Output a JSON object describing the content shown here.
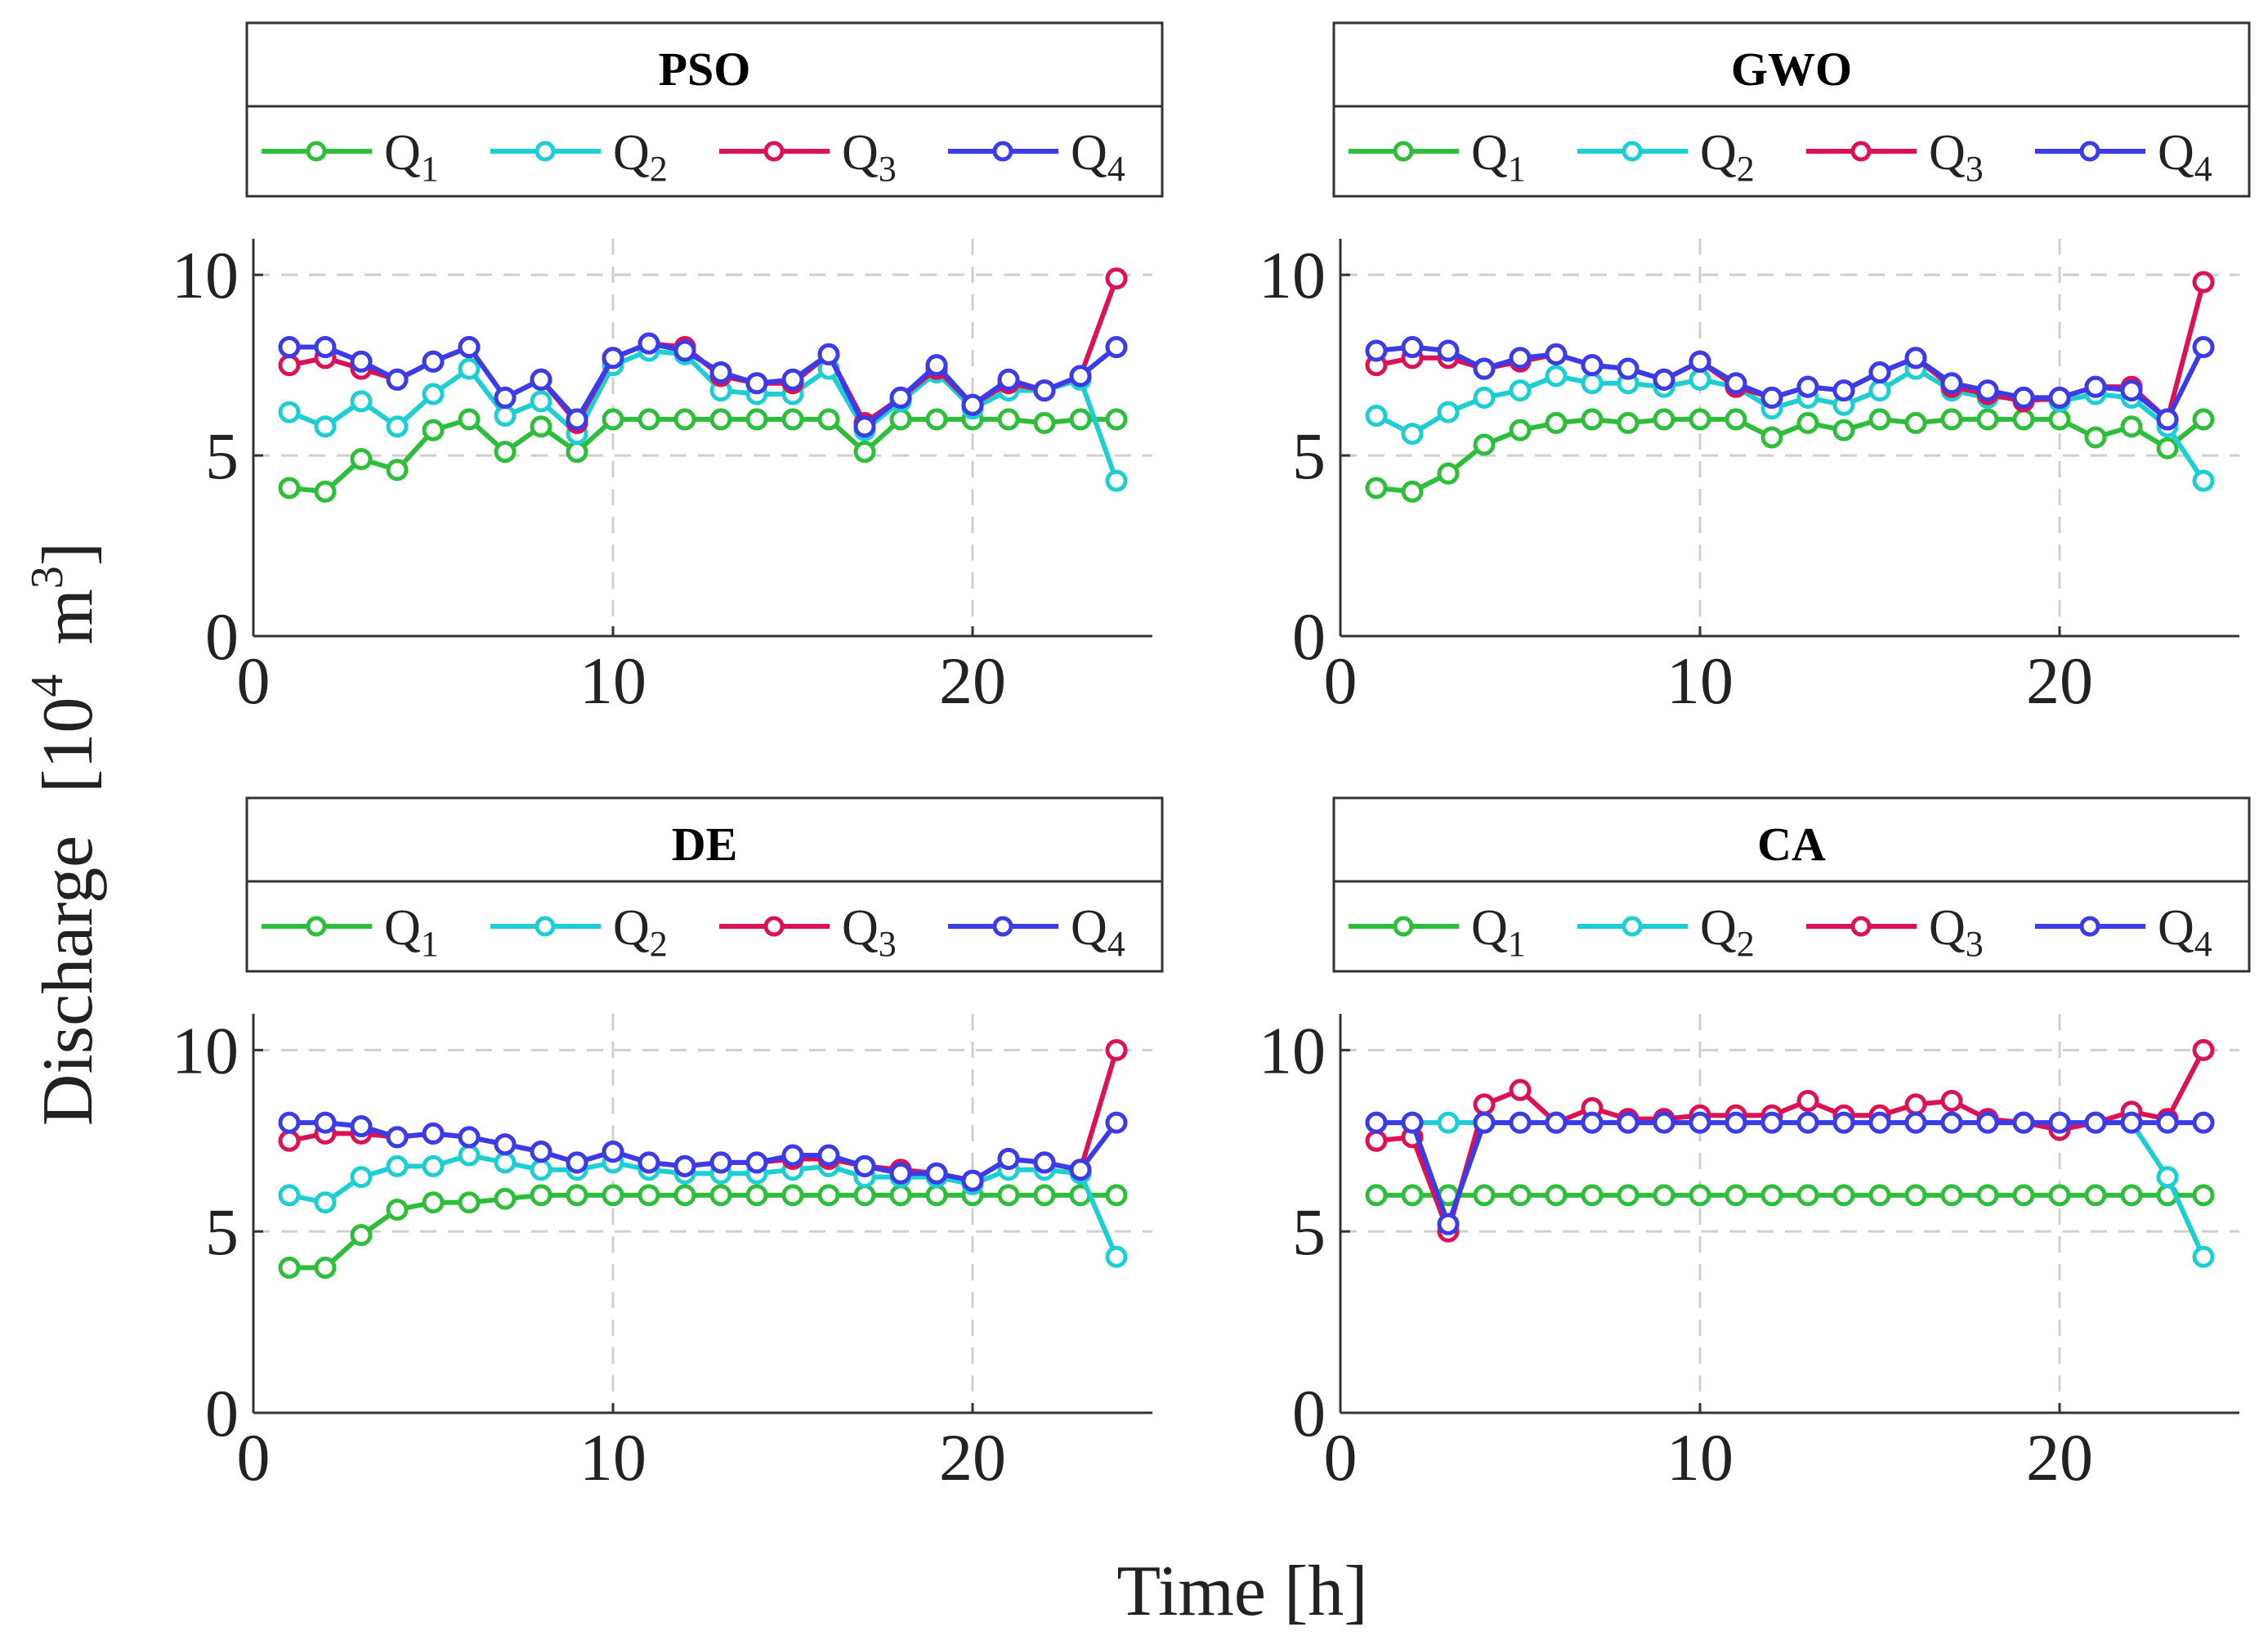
{
  "figure": {
    "xlabel": "Time [h]",
    "ylabel": "Discharge",
    "ylabel_unit_base": "10",
    "ylabel_unit_exp": "4",
    "ylabel_unit_m": "m",
    "ylabel_unit_m_exp": "3",
    "series_colors": [
      "#2fbe3b",
      "#1dcfd3",
      "#dc1257",
      "#3b3be8"
    ]
  },
  "chart_data": [
    {
      "type": "line",
      "title": "PSO",
      "xlim": [
        0,
        25
      ],
      "ylim": [
        0,
        11
      ],
      "xticks": [
        0,
        10,
        20
      ],
      "yticks": [
        0,
        5,
        10
      ],
      "grid": true,
      "x": [
        1,
        2,
        3,
        4,
        5,
        6,
        7,
        8,
        9,
        10,
        11,
        12,
        13,
        14,
        15,
        16,
        17,
        18,
        19,
        20,
        21,
        22,
        23,
        24
      ],
      "series": [
        {
          "name": "Q",
          "sub": "1",
          "values": [
            4.1,
            4.0,
            4.9,
            4.6,
            5.7,
            6.0,
            5.1,
            5.8,
            5.1,
            6.0,
            6.0,
            6.0,
            6.0,
            6.0,
            6.0,
            6.0,
            5.1,
            6.0,
            6.0,
            6.0,
            6.0,
            5.9,
            6.0,
            6.0
          ]
        },
        {
          "name": "Q",
          "sub": "2",
          "values": [
            6.2,
            5.8,
            6.5,
            5.8,
            6.7,
            7.4,
            6.1,
            6.5,
            5.6,
            7.5,
            7.9,
            7.8,
            6.8,
            6.7,
            6.7,
            7.4,
            5.7,
            6.5,
            7.3,
            6.3,
            6.8,
            6.8,
            7.1,
            4.3
          ]
        },
        {
          "name": "Q",
          "sub": "3",
          "values": [
            7.5,
            7.7,
            7.4,
            7.1,
            7.6,
            8.0,
            6.6,
            7.1,
            5.9,
            7.7,
            8.1,
            8.0,
            7.2,
            7.0,
            7.0,
            7.8,
            5.9,
            6.6,
            7.4,
            6.4,
            7.0,
            6.8,
            7.2,
            9.9
          ]
        },
        {
          "name": "Q",
          "sub": "4",
          "values": [
            8.0,
            8.0,
            7.6,
            7.1,
            7.6,
            8.0,
            6.6,
            7.1,
            6.0,
            7.7,
            8.1,
            7.9,
            7.3,
            7.0,
            7.1,
            7.8,
            5.8,
            6.6,
            7.5,
            6.4,
            7.1,
            6.8,
            7.2,
            8.0
          ]
        }
      ]
    },
    {
      "type": "line",
      "title": "GWO",
      "xlim": [
        0,
        25
      ],
      "ylim": [
        0,
        11
      ],
      "xticks": [
        0,
        10,
        20
      ],
      "yticks": [
        0,
        5,
        10
      ],
      "grid": true,
      "x": [
        1,
        2,
        3,
        4,
        5,
        6,
        7,
        8,
        9,
        10,
        11,
        12,
        13,
        14,
        15,
        16,
        17,
        18,
        19,
        20,
        21,
        22,
        23,
        24
      ],
      "series": [
        {
          "name": "Q",
          "sub": "1",
          "values": [
            4.1,
            4.0,
            4.5,
            5.3,
            5.7,
            5.9,
            6.0,
            5.9,
            6.0,
            6.0,
            6.0,
            5.5,
            5.9,
            5.7,
            6.0,
            5.9,
            6.0,
            6.0,
            6.0,
            6.0,
            5.5,
            5.8,
            5.2,
            6.0
          ]
        },
        {
          "name": "Q",
          "sub": "2",
          "values": [
            6.1,
            5.6,
            6.2,
            6.6,
            6.8,
            7.2,
            7.0,
            7.0,
            6.9,
            7.1,
            6.9,
            6.3,
            6.6,
            6.4,
            6.8,
            7.4,
            6.8,
            6.6,
            6.6,
            6.5,
            6.7,
            6.6,
            5.8,
            4.3
          ]
        },
        {
          "name": "Q",
          "sub": "3",
          "values": [
            7.5,
            7.7,
            7.7,
            7.4,
            7.6,
            7.8,
            7.5,
            7.4,
            7.1,
            7.6,
            6.9,
            6.6,
            6.9,
            6.8,
            7.3,
            7.7,
            6.9,
            6.7,
            6.5,
            6.6,
            6.9,
            6.9,
            6.0,
            9.8
          ]
        },
        {
          "name": "Q",
          "sub": "4",
          "values": [
            7.9,
            8.0,
            7.9,
            7.4,
            7.7,
            7.8,
            7.5,
            7.4,
            7.1,
            7.6,
            7.0,
            6.6,
            6.9,
            6.8,
            7.3,
            7.7,
            7.0,
            6.8,
            6.6,
            6.6,
            6.9,
            6.8,
            6.0,
            8.0
          ]
        }
      ]
    },
    {
      "type": "line",
      "title": "DE",
      "xlim": [
        0,
        25
      ],
      "ylim": [
        0,
        11
      ],
      "xticks": [
        0,
        10,
        20
      ],
      "yticks": [
        0,
        5,
        10
      ],
      "grid": true,
      "x": [
        1,
        2,
        3,
        4,
        5,
        6,
        7,
        8,
        9,
        10,
        11,
        12,
        13,
        14,
        15,
        16,
        17,
        18,
        19,
        20,
        21,
        22,
        23,
        24
      ],
      "series": [
        {
          "name": "Q",
          "sub": "1",
          "values": [
            4.0,
            4.0,
            4.9,
            5.6,
            5.8,
            5.8,
            5.9,
            6.0,
            6.0,
            6.0,
            6.0,
            6.0,
            6.0,
            6.0,
            6.0,
            6.0,
            6.0,
            6.0,
            6.0,
            6.0,
            6.0,
            6.0,
            6.0,
            6.0
          ]
        },
        {
          "name": "Q",
          "sub": "2",
          "values": [
            6.0,
            5.8,
            6.5,
            6.8,
            6.8,
            7.1,
            6.9,
            6.7,
            6.7,
            6.9,
            6.7,
            6.6,
            6.6,
            6.6,
            6.7,
            6.8,
            6.5,
            6.5,
            6.5,
            6.3,
            6.7,
            6.7,
            6.6,
            4.3
          ]
        },
        {
          "name": "Q",
          "sub": "3",
          "values": [
            7.5,
            7.7,
            7.7,
            7.6,
            7.7,
            7.6,
            7.4,
            7.2,
            6.9,
            7.2,
            6.9,
            6.8,
            6.9,
            6.9,
            7.0,
            7.0,
            6.8,
            6.7,
            6.6,
            6.4,
            7.0,
            6.9,
            6.7,
            10.0
          ]
        },
        {
          "name": "Q",
          "sub": "4",
          "values": [
            8.0,
            8.0,
            7.9,
            7.6,
            7.7,
            7.6,
            7.4,
            7.2,
            6.9,
            7.2,
            6.9,
            6.8,
            6.9,
            6.9,
            7.1,
            7.1,
            6.8,
            6.6,
            6.6,
            6.4,
            7.0,
            6.9,
            6.7,
            8.0
          ]
        }
      ]
    },
    {
      "type": "line",
      "title": "CA",
      "xlim": [
        0,
        25
      ],
      "ylim": [
        0,
        11
      ],
      "xticks": [
        0,
        10,
        20
      ],
      "yticks": [
        0,
        5,
        10
      ],
      "grid": true,
      "x": [
        1,
        2,
        3,
        4,
        5,
        6,
        7,
        8,
        9,
        10,
        11,
        12,
        13,
        14,
        15,
        16,
        17,
        18,
        19,
        20,
        21,
        22,
        23,
        24
      ],
      "series": [
        {
          "name": "Q",
          "sub": "1",
          "values": [
            6.0,
            6.0,
            6.0,
            6.0,
            6.0,
            6.0,
            6.0,
            6.0,
            6.0,
            6.0,
            6.0,
            6.0,
            6.0,
            6.0,
            6.0,
            6.0,
            6.0,
            6.0,
            6.0,
            6.0,
            6.0,
            6.0,
            6.0,
            6.0
          ]
        },
        {
          "name": "Q",
          "sub": "2",
          "values": [
            8.0,
            8.0,
            8.0,
            8.0,
            8.0,
            8.0,
            8.0,
            8.0,
            8.0,
            8.0,
            8.0,
            8.0,
            8.0,
            8.0,
            8.0,
            8.0,
            8.0,
            8.0,
            8.0,
            8.0,
            8.0,
            8.0,
            6.5,
            4.3
          ]
        },
        {
          "name": "Q",
          "sub": "3",
          "values": [
            7.5,
            7.6,
            5.0,
            8.5,
            8.9,
            8.0,
            8.4,
            8.1,
            8.1,
            8.2,
            8.2,
            8.2,
            8.6,
            8.2,
            8.2,
            8.5,
            8.6,
            8.1,
            8.0,
            7.8,
            8.0,
            8.3,
            8.1,
            10.0
          ]
        },
        {
          "name": "Q",
          "sub": "4",
          "values": [
            8.0,
            8.0,
            5.2,
            8.0,
            8.0,
            8.0,
            8.0,
            8.0,
            8.0,
            8.0,
            8.0,
            8.0,
            8.0,
            8.0,
            8.0,
            8.0,
            8.0,
            8.0,
            8.0,
            8.0,
            8.0,
            8.0,
            8.0,
            8.0
          ]
        }
      ]
    }
  ]
}
